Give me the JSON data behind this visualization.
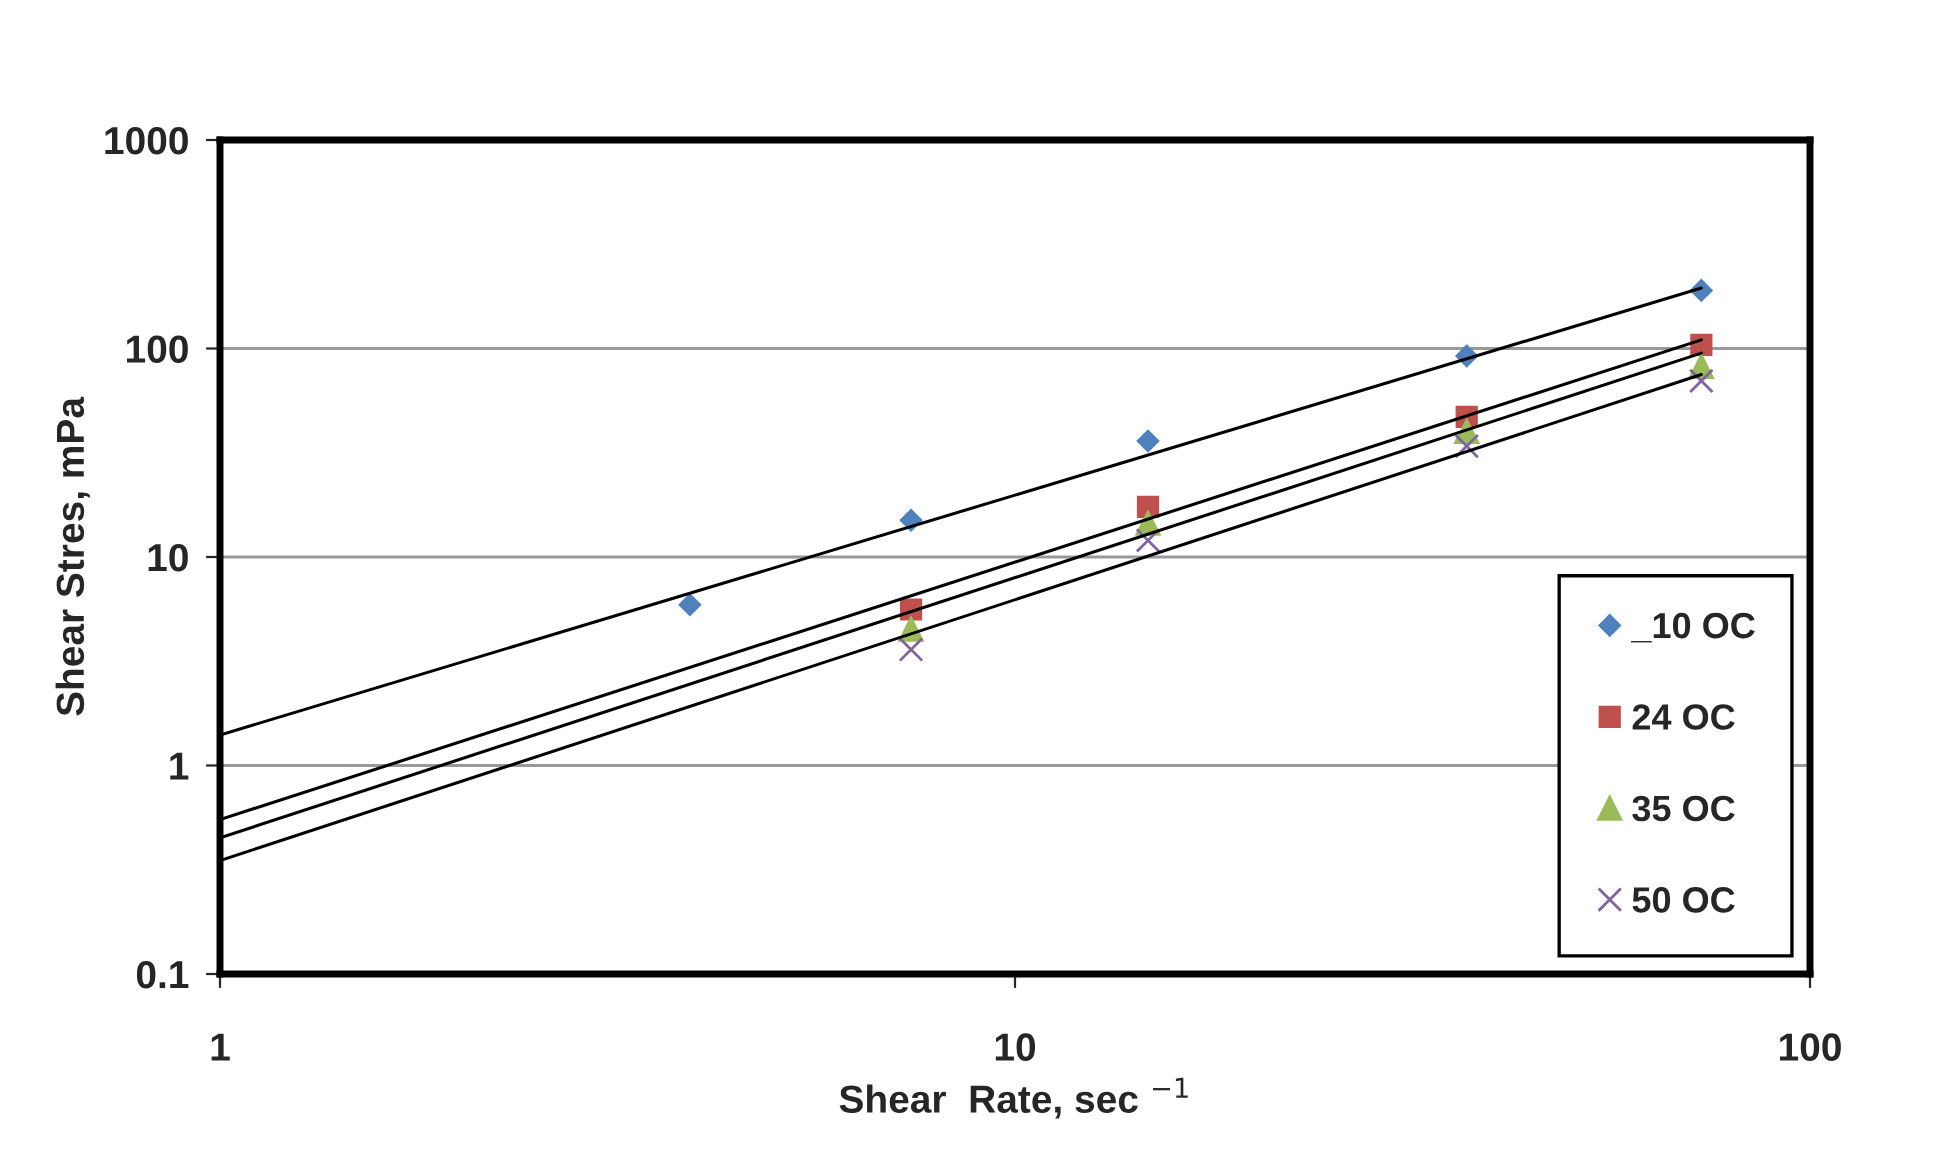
{
  "chart_data": {
    "type": "scatter",
    "xlabel": "Shear  Rate, sec $^{−1}$",
    "ylabel": "Shear Stres, mPa",
    "log": "xy",
    "xlim": [
      1,
      100
    ],
    "xticks": [
      1,
      10,
      100
    ],
    "ylim": [
      0.1,
      1000
    ],
    "yticks": [
      0.1,
      1,
      10,
      100,
      1000
    ],
    "grid": "y",
    "legend": "lower right",
    "series": [
      {
        "name": "_10 OC",
        "color": "#4f81bd",
        "marker": "diamond",
        "x": [
          3.9,
          7.4,
          14.7,
          37,
          73
        ],
        "values": [
          5.9,
          15,
          36,
          92,
          190
        ]
      },
      {
        "name": "24 OC",
        "color": "#c0504d",
        "marker": "square",
        "x": [
          7.4,
          14.7,
          37,
          73
        ],
        "values": [
          5.6,
          17.4,
          47,
          104
        ]
      },
      {
        "name": "35 OC",
        "color": "#9bbb59",
        "marker": "triangle",
        "x": [
          7.4,
          14.7,
          37,
          73
        ],
        "values": [
          4.5,
          14.5,
          40,
          82
        ]
      },
      {
        "name": "50 OC",
        "color": "#8064a2",
        "marker": "cross",
        "x": [
          7.4,
          14.7,
          37,
          73
        ],
        "values": [
          3.6,
          12,
          34,
          70
        ]
      },
      {
        "type": "line",
        "color": "#000000",
        "x": [
          1,
          73
        ],
        "values": [
          1.4,
          195
        ]
      },
      {
        "type": "line",
        "color": "#000000",
        "x": [
          1,
          73
        ],
        "values": [
          0.55,
          110
        ]
      },
      {
        "type": "line",
        "color": "#000000",
        "x": [
          1,
          73
        ],
        "values": [
          0.45,
          95
        ]
      },
      {
        "type": "line",
        "color": "#000000",
        "x": [
          1,
          73
        ],
        "values": [
          0.35,
          75
        ]
      }
    ]
  }
}
